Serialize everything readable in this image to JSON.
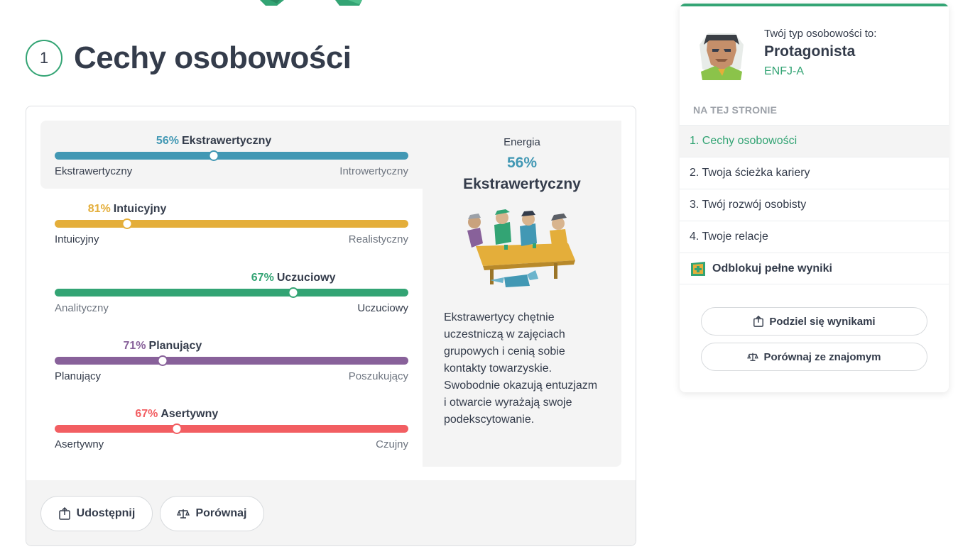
{
  "section": {
    "number": "1",
    "title": "Cechy osobowości"
  },
  "traits": [
    {
      "pct": "56%",
      "name": "Ekstrawertyczny",
      "left": "Ekstrawertyczny",
      "right": "Introwertyczny",
      "value": 45,
      "color": "#4298b4",
      "muted_side": "right"
    },
    {
      "pct": "81%",
      "name": "Intuicyjny",
      "left": "Intuicyjny",
      "right": "Realistyczny",
      "value": 20.5,
      "color": "#e4ae3a",
      "muted_side": "right"
    },
    {
      "pct": "67%",
      "name": "Uczuciowy",
      "left": "Analityczny",
      "right": "Uczuciowy",
      "value": 67.5,
      "color": "#33a474",
      "muted_side": "left"
    },
    {
      "pct": "71%",
      "name": "Planujący",
      "left": "Planujący",
      "right": "Poszukujący",
      "value": 30.5,
      "color": "#88619a",
      "muted_side": "right"
    },
    {
      "pct": "67%",
      "name": "Asertywny",
      "left": "Asertywny",
      "right": "Czujny",
      "value": 34.5,
      "color": "#f25e62",
      "muted_side": "right"
    }
  ],
  "detail": {
    "category": "Energia",
    "pct": "56%",
    "name": "Ekstrawertyczny",
    "description": "Ekstrawertycy chętnie uczestniczą w zajęciach grupowych i cenią sobie kontakty towarzyskie. Swobodnie okazują entuzjazm i otwarcie wyrażają swoje podekscytowanie."
  },
  "card_footer": {
    "share_label": "Udostępnij",
    "compare_label": "Porównaj"
  },
  "sidebar": {
    "caption": "Twój typ osobowości to:",
    "type_name": "Protagonista",
    "type_code": "ENFJ-A",
    "on_page_label": "NA TEJ STRONIE",
    "nav": [
      {
        "label": "1. Cechy osobowości",
        "active": true
      },
      {
        "label": "2. Twoja ścieżka kariery",
        "active": false
      },
      {
        "label": "3. Twój rozwój osobisty",
        "active": false
      },
      {
        "label": "4. Twoje relacje",
        "active": false
      }
    ],
    "unlock_label": "Odblokuj pełne wyniki",
    "share_results_label": "Podziel się wynikami",
    "compare_friends_label": "Porównaj ze znajomym"
  },
  "colors": {
    "accent": "#33a474",
    "text": "#343c4b",
    "panel": "#f4f4f4"
  }
}
